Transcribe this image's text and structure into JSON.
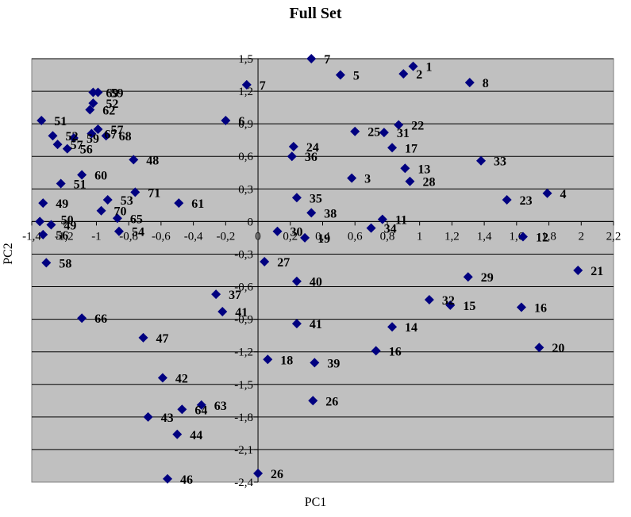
{
  "chart_data": {
    "type": "scatter",
    "title": "Full Set",
    "xlabel": "PC1",
    "ylabel": "PC2",
    "xlim": [
      -1.4,
      2.2
    ],
    "ylim": [
      -2.4,
      1.5
    ],
    "xticks": [
      -1.4,
      -1.2,
      -1,
      -0.8,
      -0.6,
      -0.4,
      -0.2,
      0,
      0.2,
      0.4,
      0.6,
      0.8,
      1,
      1.2,
      1.4,
      1.6,
      1.8,
      2,
      2.2
    ],
    "xtick_labels": [
      "-1,4",
      "-1,2",
      "-1",
      "-0,8",
      "-0,6",
      "-0,4",
      "-0,2",
      "0",
      "0,2",
      "0,4",
      "0,6",
      "0,8",
      "1",
      "1,2",
      "1,4",
      "1,6",
      "1,8",
      "2",
      "2,2"
    ],
    "yticks": [
      1.5,
      1.2,
      0.9,
      0.6,
      0.3,
      0,
      -0.3,
      -0.6,
      -0.9,
      -1.2,
      -1.5,
      -1.8,
      -2.1,
      -2.4
    ],
    "ytick_labels": [
      "1,5",
      "1,2",
      "0,9",
      "0,6",
      "0,3",
      "0",
      "-0,3",
      "-0,6",
      "-0,9",
      "-1,2",
      "-1,5",
      "-1,8",
      "-2,1",
      "-2,4"
    ],
    "grid": "horizontal",
    "plot_background": "#c0c0c0",
    "marker_color": "#000080",
    "marker": "diamond",
    "points": [
      {
        "x": 0.33,
        "y": 1.5,
        "label": "7"
      },
      {
        "x": -0.07,
        "y": 1.26,
        "label": "7"
      },
      {
        "x": 0.51,
        "y": 1.35,
        "label": "5"
      },
      {
        "x": 0.9,
        "y": 1.36,
        "label": "2"
      },
      {
        "x": 0.96,
        "y": 1.43,
        "label": "1"
      },
      {
        "x": 1.31,
        "y": 1.28,
        "label": "8"
      },
      {
        "x": -0.2,
        "y": 0.93,
        "label": "6"
      },
      {
        "x": 0.6,
        "y": 0.83,
        "label": "25"
      },
      {
        "x": 0.87,
        "y": 0.89,
        "label": "22"
      },
      {
        "x": 0.78,
        "y": 0.82,
        "label": "31"
      },
      {
        "x": 0.83,
        "y": 0.68,
        "label": "17"
      },
      {
        "x": 0.22,
        "y": 0.69,
        "label": "24"
      },
      {
        "x": 0.21,
        "y": 0.6,
        "label": "36"
      },
      {
        "x": 1.38,
        "y": 0.56,
        "label": "33"
      },
      {
        "x": 0.91,
        "y": 0.49,
        "label": "13"
      },
      {
        "x": 0.58,
        "y": 0.4,
        "label": "3"
      },
      {
        "x": 0.94,
        "y": 0.37,
        "label": "28"
      },
      {
        "x": 1.79,
        "y": 0.26,
        "label": "4"
      },
      {
        "x": 1.54,
        "y": 0.2,
        "label": "23"
      },
      {
        "x": 0.24,
        "y": 0.22,
        "label": "35"
      },
      {
        "x": 0.33,
        "y": 0.08,
        "label": "38"
      },
      {
        "x": 0.77,
        "y": 0.02,
        "label": "11"
      },
      {
        "x": 0.7,
        "y": -0.06,
        "label": "34"
      },
      {
        "x": 0.12,
        "y": -0.09,
        "label": "30"
      },
      {
        "x": 0.29,
        "y": -0.15,
        "label": "19"
      },
      {
        "x": 1.64,
        "y": -0.14,
        "label": "12"
      },
      {
        "x": 0.04,
        "y": -0.37,
        "label": "27"
      },
      {
        "x": 1.98,
        "y": -0.45,
        "label": "21"
      },
      {
        "x": 1.3,
        "y": -0.51,
        "label": "29"
      },
      {
        "x": 0.24,
        "y": -0.55,
        "label": "40"
      },
      {
        "x": 1.06,
        "y": -0.72,
        "label": "32"
      },
      {
        "x": 1.19,
        "y": -0.77,
        "label": "15"
      },
      {
        "x": 1.63,
        "y": -0.79,
        "label": "16"
      },
      {
        "x": -0.26,
        "y": -0.67,
        "label": "37"
      },
      {
        "x": -0.22,
        "y": -0.83,
        "label": "41"
      },
      {
        "x": 0.24,
        "y": -0.94,
        "label": "41"
      },
      {
        "x": 0.83,
        "y": -0.97,
        "label": "14"
      },
      {
        "x": 0.73,
        "y": -1.19,
        "label": "16"
      },
      {
        "x": 1.74,
        "y": -1.16,
        "label": "20"
      },
      {
        "x": 0.06,
        "y": -1.27,
        "label": "18"
      },
      {
        "x": 0.35,
        "y": -1.3,
        "label": "39"
      },
      {
        "x": 0.34,
        "y": -1.65,
        "label": "26"
      },
      {
        "x": 0.0,
        "y": -2.32,
        "label": "26"
      },
      {
        "x": -1.02,
        "y": 1.19,
        "label": "69"
      },
      {
        "x": -0.99,
        "y": 1.19,
        "label": "59"
      },
      {
        "x": -1.02,
        "y": 1.09,
        "label": "52"
      },
      {
        "x": -1.04,
        "y": 1.03,
        "label": "62"
      },
      {
        "x": -1.34,
        "y": 0.93,
        "label": "51"
      },
      {
        "x": -1.27,
        "y": 0.79,
        "label": "52"
      },
      {
        "x": -1.24,
        "y": 0.71,
        "label": "57"
      },
      {
        "x": -1.18,
        "y": 0.67,
        "label": "56"
      },
      {
        "x": -1.14,
        "y": 0.77,
        "label": "59"
      },
      {
        "x": -1.03,
        "y": 0.81,
        "label": "67"
      },
      {
        "x": -0.99,
        "y": 0.85,
        "label": "57"
      },
      {
        "x": -0.94,
        "y": 0.79,
        "label": "68"
      },
      {
        "x": -0.77,
        "y": 0.57,
        "label": "48"
      },
      {
        "x": -1.09,
        "y": 0.43,
        "label": "60"
      },
      {
        "x": -1.22,
        "y": 0.35,
        "label": "51"
      },
      {
        "x": -0.76,
        "y": 0.27,
        "label": "71"
      },
      {
        "x": -0.93,
        "y": 0.2,
        "label": "53"
      },
      {
        "x": -1.33,
        "y": 0.17,
        "label": "49"
      },
      {
        "x": -0.97,
        "y": 0.1,
        "label": "70"
      },
      {
        "x": -0.49,
        "y": 0.17,
        "label": "61"
      },
      {
        "x": -0.87,
        "y": 0.03,
        "label": "65"
      },
      {
        "x": -0.86,
        "y": -0.09,
        "label": "54"
      },
      {
        "x": -1.35,
        "y": 0.0,
        "label": ""
      },
      {
        "x": -1.28,
        "y": -0.03,
        "label": "49"
      },
      {
        "x": -1.33,
        "y": -0.12,
        "label": "56"
      },
      {
        "x": -1.31,
        "y": -0.38,
        "label": "58"
      },
      {
        "x": -1.09,
        "y": -0.89,
        "label": "66"
      },
      {
        "x": -0.71,
        "y": -1.07,
        "label": "47"
      },
      {
        "x": -0.59,
        "y": -1.44,
        "label": "42"
      },
      {
        "x": -0.35,
        "y": -1.69,
        "label": "63"
      },
      {
        "x": -0.47,
        "y": -1.73,
        "label": "64"
      },
      {
        "x": -0.68,
        "y": -1.8,
        "label": "43"
      },
      {
        "x": -0.5,
        "y": -1.96,
        "label": "44"
      },
      {
        "x": -0.56,
        "y": -2.37,
        "label": "46"
      }
    ],
    "extra_labels": [
      {
        "x": -1.22,
        "y": 0.02,
        "label": "50"
      }
    ]
  }
}
